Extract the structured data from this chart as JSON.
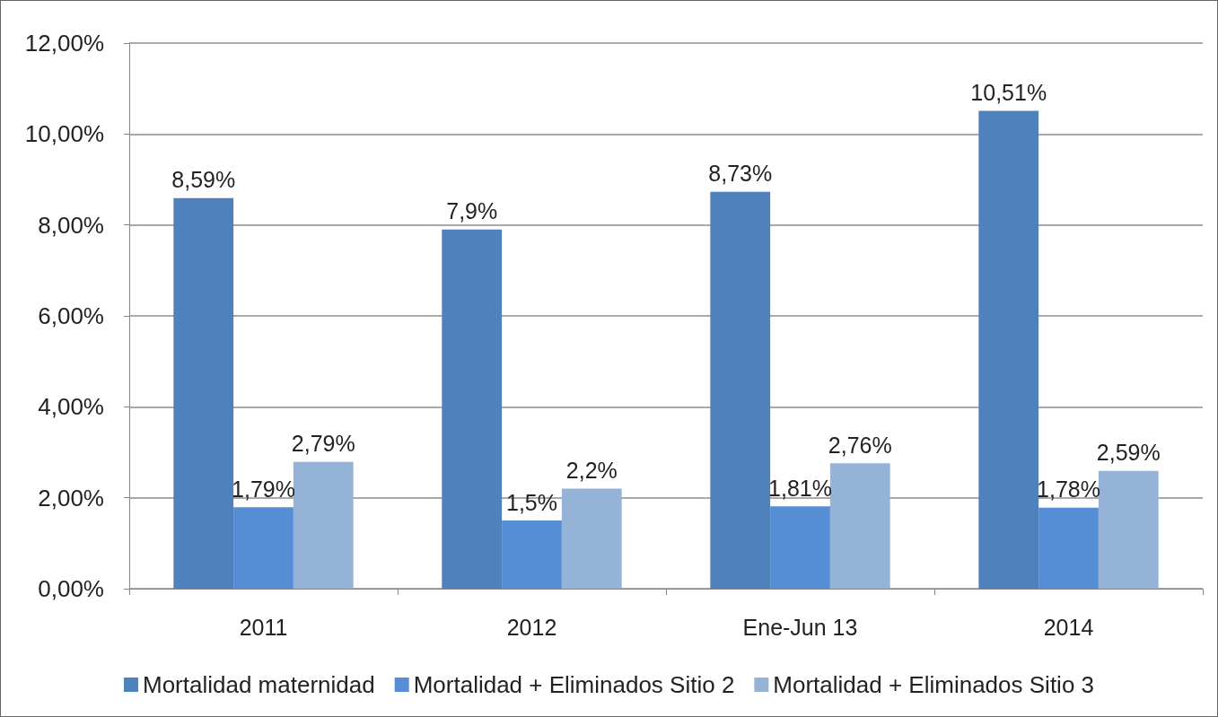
{
  "chart_data": {
    "type": "bar",
    "categories": [
      "2011",
      "2012",
      "Ene-Jun 13",
      "2014"
    ],
    "series": [
      {
        "name": "Mortalidad maternidad",
        "color": "#4f81bd",
        "values": [
          8.59,
          7.9,
          8.73,
          10.51
        ],
        "value_labels": [
          "8,59%",
          "7,9%",
          "8,73%",
          "10,51%"
        ]
      },
      {
        "name": "Mortalidad + Eliminados Sitio 2",
        "color": "#558ed5",
        "values": [
          1.79,
          1.5,
          1.81,
          1.78
        ],
        "value_labels": [
          "1,79%",
          "1,5%",
          "1,81%",
          "1,78%"
        ]
      },
      {
        "name": "Mortalidad + Eliminados Sitio 3",
        "color": "#95b3d7",
        "values": [
          2.79,
          2.2,
          2.76,
          2.59
        ],
        "value_labels": [
          "2,79%",
          "2,2%",
          "2,76%",
          "2,59%"
        ]
      }
    ],
    "ylim": [
      0,
      12
    ],
    "yticks": [
      {
        "value": 0,
        "label": "0,00%"
      },
      {
        "value": 2,
        "label": "2,00%"
      },
      {
        "value": 4,
        "label": "4,00%"
      },
      {
        "value": 6,
        "label": "6,00%"
      },
      {
        "value": 8,
        "label": "8,00%"
      },
      {
        "value": 10,
        "label": "10,00%"
      },
      {
        "value": 12,
        "label": "12,00%"
      }
    ],
    "grid": "y",
    "legend": "bottom"
  }
}
